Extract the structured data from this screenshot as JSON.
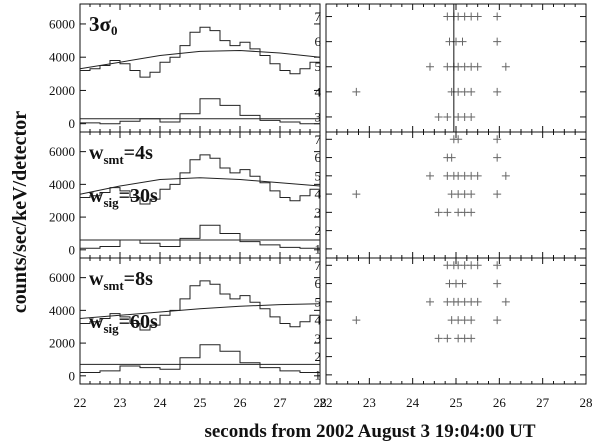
{
  "figure": {
    "ylabel": "counts/sec/keV/detector",
    "xlabel": "seconds from 2002 August 3 19:04:00 UT"
  },
  "chart_data": [
    {
      "type": "line",
      "panel": "left-1",
      "annotation": [
        "3σ",
        "0"
      ],
      "xlim": [
        22,
        28
      ],
      "ylim": [
        -500,
        7200
      ],
      "yticks": [
        0,
        2000,
        4000,
        6000
      ],
      "series": [
        {
          "values": [
            [
              22.0,
              3200
            ],
            [
              22.25,
              3300
            ],
            [
              22.5,
              3500
            ],
            [
              22.75,
              3800
            ],
            [
              23.0,
              3600
            ],
            [
              23.25,
              3200
            ],
            [
              23.5,
              2800
            ],
            [
              23.75,
              3100
            ],
            [
              24.0,
              3700
            ],
            [
              24.25,
              4000
            ],
            [
              24.5,
              4700
            ],
            [
              24.75,
              5500
            ],
            [
              25.0,
              5800
            ],
            [
              25.25,
              5600
            ],
            [
              25.5,
              5000
            ],
            [
              25.75,
              4700
            ],
            [
              26.0,
              4900
            ],
            [
              26.25,
              4500
            ],
            [
              26.5,
              4100
            ],
            [
              26.75,
              3600
            ],
            [
              27.0,
              3200
            ],
            [
              27.25,
              3000
            ],
            [
              27.5,
              3300
            ],
            [
              27.75,
              3700
            ],
            [
              28.0,
              3800
            ]
          ]
        },
        {
          "values": [
            [
              22.0,
              3300
            ],
            [
              23.0,
              3700
            ],
            [
              24.0,
              4100
            ],
            [
              25.0,
              4350
            ],
            [
              26.0,
              4400
            ],
            [
              27.0,
              4250
            ],
            [
              28.0,
              4000
            ]
          ]
        },
        {
          "values": [
            [
              22.0,
              50
            ],
            [
              22.5,
              0
            ],
            [
              23.0,
              150
            ],
            [
              23.5,
              300
            ],
            [
              24.0,
              100
            ],
            [
              24.5,
              600
            ],
            [
              25.0,
              1500
            ],
            [
              25.5,
              1100
            ],
            [
              26.0,
              500
            ],
            [
              26.5,
              200
            ],
            [
              27.0,
              100
            ],
            [
              27.5,
              0
            ],
            [
              28.0,
              80
            ]
          ]
        },
        {
          "values": [
            [
              22.0,
              300
            ],
            [
              28.0,
              300
            ]
          ]
        }
      ]
    },
    {
      "type": "line",
      "panel": "left-2",
      "annotation": [
        "w",
        "smt",
        "=4s",
        "w",
        "sig",
        "=30s"
      ],
      "xlim": [
        22,
        28
      ],
      "ylim": [
        -500,
        7200
      ],
      "yticks": [
        0,
        2000,
        4000,
        6000
      ],
      "series": [
        {
          "values": [
            [
              22.0,
              3200
            ],
            [
              22.25,
              3300
            ],
            [
              22.5,
              3500
            ],
            [
              22.75,
              3800
            ],
            [
              23.0,
              3600
            ],
            [
              23.25,
              3200
            ],
            [
              23.5,
              2800
            ],
            [
              23.75,
              3100
            ],
            [
              24.0,
              3700
            ],
            [
              24.25,
              4000
            ],
            [
              24.5,
              4700
            ],
            [
              24.75,
              5500
            ],
            [
              25.0,
              5800
            ],
            [
              25.25,
              5600
            ],
            [
              25.5,
              5000
            ],
            [
              25.75,
              4700
            ],
            [
              26.0,
              4900
            ],
            [
              26.25,
              4500
            ],
            [
              26.5,
              4100
            ],
            [
              26.75,
              3600
            ],
            [
              27.0,
              3200
            ],
            [
              27.25,
              3000
            ],
            [
              27.5,
              3300
            ],
            [
              27.75,
              3700
            ],
            [
              28.0,
              3800
            ]
          ]
        },
        {
          "values": [
            [
              22.0,
              3400
            ],
            [
              23.0,
              3900
            ],
            [
              24.0,
              4300
            ],
            [
              25.0,
              4400
            ],
            [
              26.0,
              4300
            ],
            [
              27.0,
              4100
            ],
            [
              28.0,
              3900
            ]
          ]
        },
        {
          "values": [
            [
              22.0,
              100
            ],
            [
              22.5,
              200
            ],
            [
              23.0,
              600
            ],
            [
              23.5,
              400
            ],
            [
              24.0,
              200
            ],
            [
              24.5,
              700
            ],
            [
              25.0,
              1500
            ],
            [
              25.5,
              1000
            ],
            [
              26.0,
              500
            ],
            [
              26.5,
              300
            ],
            [
              27.0,
              150
            ],
            [
              27.5,
              100
            ],
            [
              28.0,
              80
            ]
          ]
        },
        {
          "values": [
            [
              22.0,
              600
            ],
            [
              28.0,
              600
            ]
          ]
        }
      ]
    },
    {
      "type": "line",
      "panel": "left-3",
      "annotation": [
        "w",
        "smt",
        "=8s",
        "w",
        "sig",
        "=60s"
      ],
      "xlim": [
        22,
        28
      ],
      "ylim": [
        -500,
        7200
      ],
      "yticks": [
        0,
        2000,
        4000,
        6000
      ],
      "series": [
        {
          "values": [
            [
              22.0,
              3200
            ],
            [
              22.25,
              3300
            ],
            [
              22.5,
              3500
            ],
            [
              22.75,
              3800
            ],
            [
              23.0,
              3600
            ],
            [
              23.25,
              3200
            ],
            [
              23.5,
              2800
            ],
            [
              23.75,
              3100
            ],
            [
              24.0,
              3700
            ],
            [
              24.25,
              4000
            ],
            [
              24.5,
              4700
            ],
            [
              24.75,
              5500
            ],
            [
              25.0,
              5800
            ],
            [
              25.25,
              5600
            ],
            [
              25.5,
              5000
            ],
            [
              25.75,
              4700
            ],
            [
              26.0,
              4900
            ],
            [
              26.25,
              4500
            ],
            [
              26.5,
              4100
            ],
            [
              26.75,
              3600
            ],
            [
              27.0,
              3200
            ],
            [
              27.25,
              3000
            ],
            [
              27.5,
              3300
            ],
            [
              27.75,
              3700
            ],
            [
              28.0,
              3800
            ]
          ]
        },
        {
          "values": [
            [
              22.0,
              3500
            ],
            [
              23.0,
              3700
            ],
            [
              24.0,
              3900
            ],
            [
              25.0,
              4100
            ],
            [
              26.0,
              4250
            ],
            [
              27.0,
              4350
            ],
            [
              28.0,
              4400
            ]
          ]
        },
        {
          "values": [
            [
              22.0,
              200
            ],
            [
              22.5,
              300
            ],
            [
              23.0,
              600
            ],
            [
              23.5,
              500
            ],
            [
              24.0,
              400
            ],
            [
              24.5,
              1100
            ],
            [
              25.0,
              1900
            ],
            [
              25.5,
              1500
            ],
            [
              26.0,
              800
            ],
            [
              26.5,
              500
            ],
            [
              27.0,
              300
            ],
            [
              27.5,
              200
            ],
            [
              28.0,
              250
            ]
          ]
        },
        {
          "values": [
            [
              22.0,
              700
            ],
            [
              28.0,
              700
            ]
          ]
        }
      ]
    },
    {
      "type": "scatter",
      "panel": "right-1",
      "xlim": [
        22,
        28
      ],
      "ylim": [
        2.4,
        7.5
      ],
      "yticks": [
        3,
        4,
        5,
        6,
        7
      ],
      "vline": 24.95,
      "points": [
        [
          24.8,
          7
        ],
        [
          24.95,
          7
        ],
        [
          25.05,
          7
        ],
        [
          25.2,
          7
        ],
        [
          25.35,
          7
        ],
        [
          25.5,
          7
        ],
        [
          25.95,
          7
        ],
        [
          24.85,
          6
        ],
        [
          25.0,
          6
        ],
        [
          25.15,
          6
        ],
        [
          25.95,
          6
        ],
        [
          24.4,
          5
        ],
        [
          24.8,
          5
        ],
        [
          24.95,
          5
        ],
        [
          25.05,
          5
        ],
        [
          25.2,
          5
        ],
        [
          25.35,
          5
        ],
        [
          25.5,
          5
        ],
        [
          26.15,
          5
        ],
        [
          22.7,
          4
        ],
        [
          24.9,
          4
        ],
        [
          25.05,
          4
        ],
        [
          25.2,
          4
        ],
        [
          25.35,
          4
        ],
        [
          25.95,
          4
        ],
        [
          24.6,
          3
        ],
        [
          24.8,
          3
        ],
        [
          25.05,
          3
        ],
        [
          25.2,
          3
        ],
        [
          25.35,
          3
        ]
      ]
    },
    {
      "type": "scatter",
      "panel": "right-2",
      "xlim": [
        22,
        28
      ],
      "ylim": [
        0.5,
        7.4
      ],
      "yticks": [
        1,
        2,
        3,
        4,
        5,
        6,
        7
      ],
      "points": [
        [
          24.95,
          7
        ],
        [
          25.05,
          7
        ],
        [
          25.95,
          7
        ],
        [
          24.8,
          6
        ],
        [
          24.9,
          6
        ],
        [
          25.95,
          6
        ],
        [
          24.4,
          5
        ],
        [
          24.8,
          5
        ],
        [
          24.95,
          5
        ],
        [
          25.05,
          5
        ],
        [
          25.2,
          5
        ],
        [
          25.35,
          5
        ],
        [
          25.5,
          5
        ],
        [
          26.15,
          5
        ],
        [
          22.7,
          4
        ],
        [
          24.9,
          4
        ],
        [
          25.05,
          4
        ],
        [
          25.2,
          4
        ],
        [
          25.35,
          4
        ],
        [
          25.95,
          4
        ],
        [
          24.6,
          3
        ],
        [
          24.8,
          3
        ],
        [
          25.05,
          3
        ],
        [
          25.2,
          3
        ],
        [
          25.35,
          3
        ]
      ]
    },
    {
      "type": "scatter",
      "panel": "right-3",
      "xlim": [
        22,
        28
      ],
      "ylim": [
        0.5,
        7.4
      ],
      "yticks": [
        1,
        2,
        3,
        4,
        5,
        6,
        7
      ],
      "points": [
        [
          24.8,
          7
        ],
        [
          24.95,
          7
        ],
        [
          25.05,
          7
        ],
        [
          25.2,
          7
        ],
        [
          25.35,
          7
        ],
        [
          25.5,
          7
        ],
        [
          25.95,
          7
        ],
        [
          24.85,
          6
        ],
        [
          25.0,
          6
        ],
        [
          25.15,
          6
        ],
        [
          25.95,
          6
        ],
        [
          24.4,
          5
        ],
        [
          24.8,
          5
        ],
        [
          24.95,
          5
        ],
        [
          25.05,
          5
        ],
        [
          25.2,
          5
        ],
        [
          25.35,
          5
        ],
        [
          25.5,
          5
        ],
        [
          26.15,
          5
        ],
        [
          22.7,
          4
        ],
        [
          24.9,
          4
        ],
        [
          25.05,
          4
        ],
        [
          25.2,
          4
        ],
        [
          25.35,
          4
        ],
        [
          25.95,
          4
        ],
        [
          24.6,
          3
        ],
        [
          24.8,
          3
        ],
        [
          25.05,
          3
        ],
        [
          25.2,
          3
        ],
        [
          25.35,
          3
        ]
      ]
    }
  ],
  "xticks": [
    22,
    23,
    24,
    25,
    26,
    27,
    28
  ]
}
